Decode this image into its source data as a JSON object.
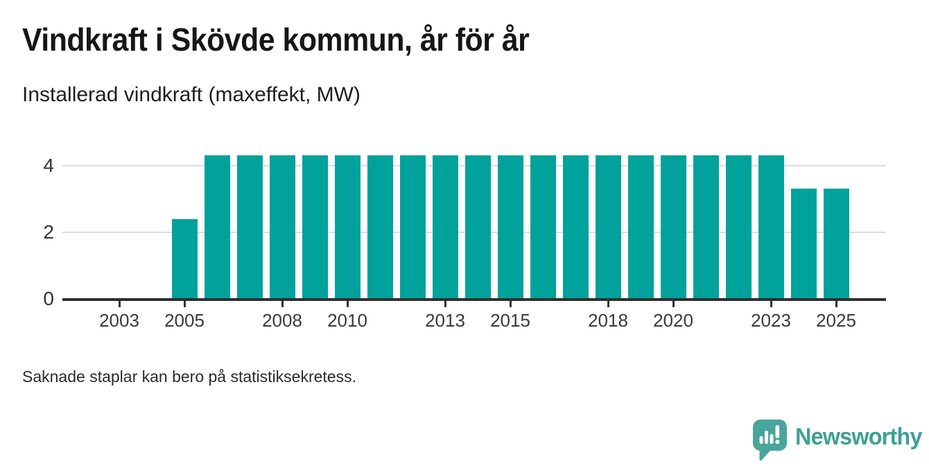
{
  "header": {
    "title": "Vindkraft i Skövde kommun, år för år",
    "subtitle": "Installerad vindkraft (maxeffekt, MW)"
  },
  "footer": {
    "note": "Saknade staplar kan bero på statistiksekretess."
  },
  "branding": {
    "logo_icon": "newsworthy-speech-bubble-bar-chart-icon",
    "logo_text": "Newsworthy",
    "logo_color": "#3da096",
    "logo_bubble_color": "#48a69b"
  },
  "chart_data": {
    "type": "bar",
    "title": "Vindkraft i Skövde kommun, år för år",
    "subtitle": "Installerad vindkraft (maxeffekt, MW)",
    "xlabel": "",
    "ylabel": "Installerad vindkraft (maxeffekt, MW)",
    "unit": "MW",
    "bar_color": "#00a29b",
    "grid": "horizontal-only",
    "gridline_color": "#dcdcdc",
    "axis_color": "#2e2e2e",
    "ylim": [
      0,
      4.3
    ],
    "yticks": [
      0,
      2,
      4
    ],
    "xticks": [
      2003,
      2005,
      2008,
      2010,
      2013,
      2015,
      2018,
      2020,
      2023,
      2025
    ],
    "x_domain": [
      2002,
      2026
    ],
    "missing_years": [
      2002,
      2003,
      2004
    ],
    "bars": [
      {
        "year": 2005,
        "value": 2.4
      },
      {
        "year": 2006,
        "value": 4.3
      },
      {
        "year": 2007,
        "value": 4.3
      },
      {
        "year": 2008,
        "value": 4.3
      },
      {
        "year": 2009,
        "value": 4.3
      },
      {
        "year": 2010,
        "value": 4.3
      },
      {
        "year": 2011,
        "value": 4.3
      },
      {
        "year": 2012,
        "value": 4.3
      },
      {
        "year": 2013,
        "value": 4.3
      },
      {
        "year": 2014,
        "value": 4.3
      },
      {
        "year": 2015,
        "value": 4.3
      },
      {
        "year": 2016,
        "value": 4.3
      },
      {
        "year": 2017,
        "value": 4.3
      },
      {
        "year": 2018,
        "value": 4.3
      },
      {
        "year": 2019,
        "value": 4.3
      },
      {
        "year": 2020,
        "value": 4.3
      },
      {
        "year": 2021,
        "value": 4.3
      },
      {
        "year": 2022,
        "value": 4.3
      },
      {
        "year": 2023,
        "value": 4.3
      },
      {
        "year": 2024,
        "value": 3.3
      },
      {
        "year": 2025,
        "value": 3.3
      }
    ]
  }
}
